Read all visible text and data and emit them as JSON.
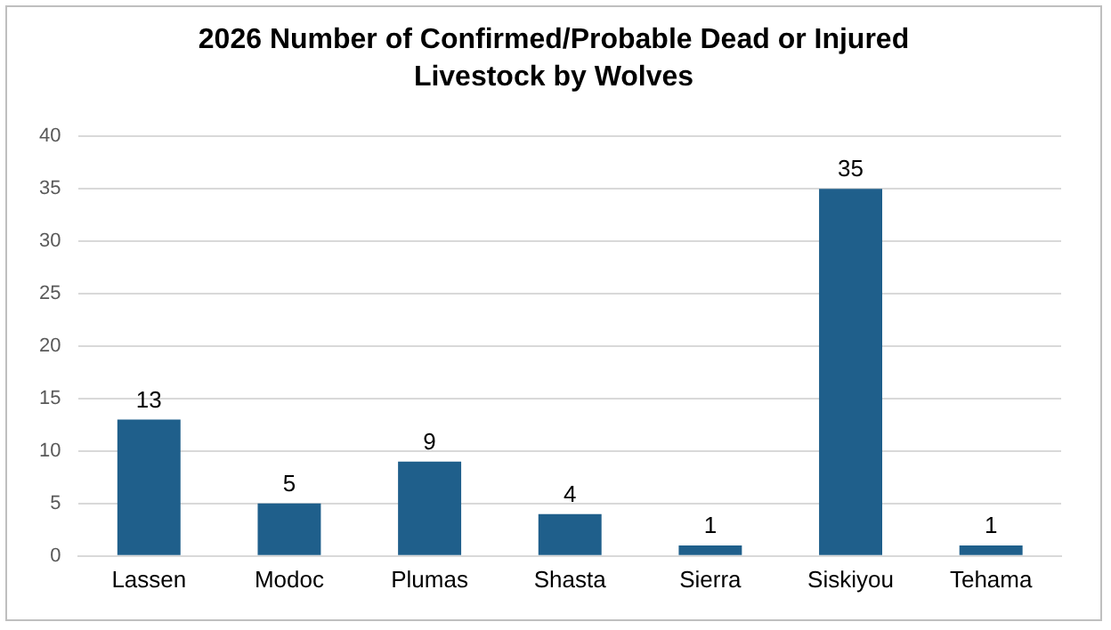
{
  "chart_data": {
    "type": "bar",
    "title": "2026 Number of Confirmed/Probable Dead or Injured Livestock by Wolves",
    "categories": [
      "Lassen",
      "Modoc",
      "Plumas",
      "Shasta",
      "Sierra",
      "Siskiyou",
      "Tehama"
    ],
    "values": [
      13,
      5,
      9,
      4,
      1,
      35,
      1
    ],
    "color": "#1f5f8b",
    "ylim": [
      0,
      40
    ],
    "yticks": [
      0,
      5,
      10,
      15,
      20,
      25,
      30,
      35,
      40
    ],
    "grid": "y",
    "data_labels": true
  }
}
